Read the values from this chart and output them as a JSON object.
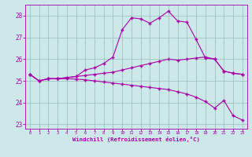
{
  "xlabel": "Windchill (Refroidissement éolien,°C)",
  "bg_color": "#cce8e8",
  "line_color": "#aa00aa",
  "xlim": [
    -0.5,
    23.5
  ],
  "ylim": [
    22.8,
    28.5
  ],
  "yticks": [
    23,
    24,
    25,
    26,
    27,
    28
  ],
  "xticks": [
    0,
    1,
    2,
    3,
    4,
    5,
    6,
    7,
    8,
    9,
    10,
    11,
    12,
    13,
    14,
    15,
    16,
    17,
    18,
    19,
    20,
    21,
    22,
    23
  ],
  "series1_x": [
    0,
    1,
    2,
    3,
    4,
    5,
    6,
    7,
    8,
    9,
    10,
    11,
    12,
    13,
    14,
    15,
    16,
    17,
    18,
    19,
    20,
    21,
    22,
    23
  ],
  "series1_y": [
    25.3,
    25.0,
    25.1,
    25.1,
    25.15,
    25.2,
    25.5,
    25.6,
    25.8,
    26.1,
    27.35,
    27.9,
    27.85,
    27.65,
    27.9,
    28.2,
    27.75,
    27.7,
    26.9,
    26.05,
    26.0,
    25.45,
    25.35,
    25.3
  ],
  "series2_x": [
    0,
    1,
    2,
    3,
    4,
    5,
    6,
    7,
    8,
    9,
    10,
    11,
    12,
    13,
    14,
    15,
    16,
    17,
    18,
    19,
    20,
    21,
    22,
    23
  ],
  "series2_y": [
    25.3,
    25.0,
    25.1,
    25.1,
    25.15,
    25.2,
    25.25,
    25.3,
    25.35,
    25.4,
    25.5,
    25.6,
    25.7,
    25.8,
    25.9,
    26.0,
    25.95,
    26.0,
    26.05,
    26.1,
    26.0,
    25.45,
    25.35,
    25.3
  ],
  "series3_x": [
    0,
    1,
    2,
    3,
    4,
    5,
    6,
    7,
    8,
    9,
    10,
    11,
    12,
    13,
    14,
    15,
    16,
    17,
    18,
    19,
    20,
    21,
    22,
    23
  ],
  "series3_y": [
    25.3,
    25.0,
    25.1,
    25.1,
    25.1,
    25.08,
    25.05,
    25.0,
    24.95,
    24.9,
    24.85,
    24.8,
    24.75,
    24.7,
    24.65,
    24.6,
    24.5,
    24.4,
    24.25,
    24.05,
    23.75,
    24.1,
    23.4,
    23.2
  ],
  "marker": "+",
  "markersize": 3,
  "linewidth": 0.8
}
